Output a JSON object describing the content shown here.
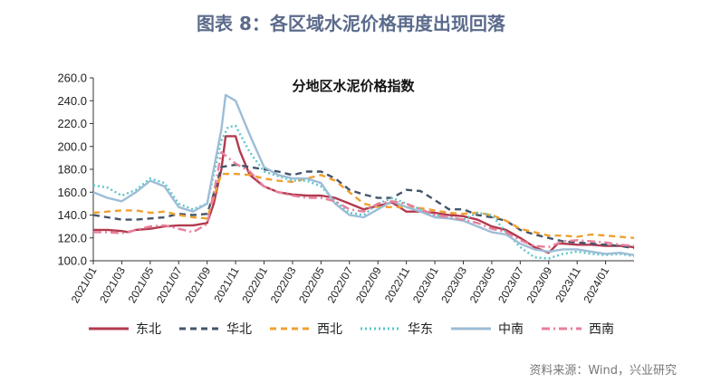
{
  "figure": {
    "title": "图表 8：各区域水泥价格再度出现回落",
    "source": "资料来源：Wind，兴业研究"
  },
  "chart_data": {
    "type": "line",
    "title": "分地区水泥价格指数",
    "xlabel": "",
    "ylabel": "",
    "ylim": [
      100,
      260
    ],
    "xlim": [
      "2021-01",
      "2024-03"
    ],
    "yticks": [
      "100.0",
      "120.0",
      "140.0",
      "160.0",
      "180.0",
      "200.0",
      "220.0",
      "240.0",
      "260.0"
    ],
    "xticks": [
      "2021/01",
      "2021/03",
      "2021/05",
      "2021/07",
      "2021/09",
      "2021/11",
      "2022/01",
      "2022/03",
      "2022/05",
      "2022/07",
      "2022/09",
      "2022/11",
      "2023/01",
      "2023/03",
      "2023/05",
      "2023/07",
      "2023/09",
      "2023/11",
      "2024/01"
    ],
    "grid": false,
    "legend_position": "bottom",
    "series": [
      {
        "name": "东北",
        "color": "#b33a4e",
        "dash": "solid",
        "points": [
          [
            "2021-01",
            127
          ],
          [
            "2021-02",
            127
          ],
          [
            "2021-03",
            126
          ],
          [
            "2021-03-15",
            125
          ],
          [
            "2021-04",
            127
          ],
          [
            "2021-05",
            128
          ],
          [
            "2021-06",
            130
          ],
          [
            "2021-07",
            131
          ],
          [
            "2021-08",
            131
          ],
          [
            "2021-09",
            133
          ],
          [
            "2021-09-15",
            150
          ],
          [
            "2021-10",
            180
          ],
          [
            "2021-10-10",
            209
          ],
          [
            "2021-11",
            209
          ],
          [
            "2021-11-10",
            196
          ],
          [
            "2021-12",
            175
          ],
          [
            "2022-01",
            165
          ],
          [
            "2022-02",
            160
          ],
          [
            "2022-03",
            158
          ],
          [
            "2022-04",
            157
          ],
          [
            "2022-05",
            157
          ],
          [
            "2022-06",
            155
          ],
          [
            "2022-07",
            150
          ],
          [
            "2022-08",
            145
          ],
          [
            "2022-09",
            148
          ],
          [
            "2022-10",
            151
          ],
          [
            "2022-11",
            143
          ],
          [
            "2022-12",
            143
          ],
          [
            "2023-01",
            142
          ],
          [
            "2023-02",
            140
          ],
          [
            "2023-03",
            139
          ],
          [
            "2023-04",
            136
          ],
          [
            "2023-05",
            130
          ],
          [
            "2023-06",
            127
          ],
          [
            "2023-07",
            120
          ],
          [
            "2023-08",
            112
          ],
          [
            "2023-09",
            107
          ],
          [
            "2023-09-20",
            115
          ],
          [
            "2023-10",
            115
          ],
          [
            "2023-11",
            114
          ],
          [
            "2023-12",
            114
          ],
          [
            "2024-01",
            113
          ],
          [
            "2024-02",
            113
          ],
          [
            "2024-03",
            112
          ]
        ]
      },
      {
        "name": "华北",
        "color": "#44546a",
        "dash": "dash",
        "points": [
          [
            "2021-01",
            140
          ],
          [
            "2021-02",
            138
          ],
          [
            "2021-03",
            136
          ],
          [
            "2021-04",
            136
          ],
          [
            "2021-05",
            137
          ],
          [
            "2021-06",
            138
          ],
          [
            "2021-07",
            141
          ],
          [
            "2021-08",
            140
          ],
          [
            "2021-09",
            141
          ],
          [
            "2021-09-20",
            165
          ],
          [
            "2021-10",
            182
          ],
          [
            "2021-11",
            184
          ],
          [
            "2021-12",
            182
          ],
          [
            "2022-01",
            180
          ],
          [
            "2022-02",
            178
          ],
          [
            "2022-03",
            175
          ],
          [
            "2022-04",
            178
          ],
          [
            "2022-05",
            178
          ],
          [
            "2022-06",
            172
          ],
          [
            "2022-07",
            162
          ],
          [
            "2022-08",
            158
          ],
          [
            "2022-09",
            155
          ],
          [
            "2022-10",
            155
          ],
          [
            "2022-11",
            162
          ],
          [
            "2022-12",
            161
          ],
          [
            "2023-01",
            153
          ],
          [
            "2023-02",
            145
          ],
          [
            "2023-03",
            145
          ],
          [
            "2023-04",
            140
          ],
          [
            "2023-05",
            138
          ],
          [
            "2023-06",
            135
          ],
          [
            "2023-07",
            127
          ],
          [
            "2023-08",
            123
          ],
          [
            "2023-09",
            120
          ],
          [
            "2023-10",
            117
          ],
          [
            "2023-11",
            116
          ],
          [
            "2023-12",
            115
          ],
          [
            "2024-01",
            114
          ],
          [
            "2024-02",
            113
          ],
          [
            "2024-03",
            111
          ]
        ]
      },
      {
        "name": "西北",
        "color": "#f0a030",
        "dash": "dash",
        "points": [
          [
            "2021-01",
            142
          ],
          [
            "2021-02",
            143
          ],
          [
            "2021-03",
            144
          ],
          [
            "2021-04",
            144
          ],
          [
            "2021-05",
            142
          ],
          [
            "2021-06",
            143
          ],
          [
            "2021-07",
            140
          ],
          [
            "2021-08",
            138
          ],
          [
            "2021-09",
            137
          ],
          [
            "2021-09-20",
            162
          ],
          [
            "2021-10",
            176
          ],
          [
            "2021-11",
            176
          ],
          [
            "2021-12",
            175
          ],
          [
            "2022-01",
            172
          ],
          [
            "2022-02",
            170
          ],
          [
            "2022-03",
            169
          ],
          [
            "2022-04",
            172
          ],
          [
            "2022-05",
            175
          ],
          [
            "2022-06",
            170
          ],
          [
            "2022-07",
            160
          ],
          [
            "2022-08",
            150
          ],
          [
            "2022-09",
            147
          ],
          [
            "2022-10",
            147
          ],
          [
            "2022-11",
            147
          ],
          [
            "2022-12",
            146
          ],
          [
            "2023-01",
            144
          ],
          [
            "2023-02",
            142
          ],
          [
            "2023-03",
            141
          ],
          [
            "2023-04",
            142
          ],
          [
            "2023-05",
            140
          ],
          [
            "2023-06",
            135
          ],
          [
            "2023-07",
            128
          ],
          [
            "2023-08",
            125
          ],
          [
            "2023-09",
            122
          ],
          [
            "2023-10",
            122
          ],
          [
            "2023-11",
            121
          ],
          [
            "2023-12",
            123
          ],
          [
            "2024-01",
            122
          ],
          [
            "2024-02",
            121
          ],
          [
            "2024-03",
            120
          ]
        ]
      },
      {
        "name": "华东",
        "color": "#5bc6c9",
        "dash": "dot",
        "points": [
          [
            "2021-01",
            166
          ],
          [
            "2021-02",
            164
          ],
          [
            "2021-03",
            157
          ],
          [
            "2021-04",
            162
          ],
          [
            "2021-05",
            172
          ],
          [
            "2021-06",
            168
          ],
          [
            "2021-07",
            150
          ],
          [
            "2021-08",
            145
          ],
          [
            "2021-09",
            150
          ],
          [
            "2021-10",
            205
          ],
          [
            "2021-10-15",
            217
          ],
          [
            "2021-11",
            218
          ],
          [
            "2021-12",
            195
          ],
          [
            "2022-01",
            178
          ],
          [
            "2022-02",
            174
          ],
          [
            "2022-03",
            170
          ],
          [
            "2022-04",
            170
          ],
          [
            "2022-05",
            165
          ],
          [
            "2022-06",
            152
          ],
          [
            "2022-07",
            142
          ],
          [
            "2022-08",
            140
          ],
          [
            "2022-09",
            150
          ],
          [
            "2022-10",
            155
          ],
          [
            "2022-11",
            150
          ],
          [
            "2022-12",
            145
          ],
          [
            "2023-01",
            140
          ],
          [
            "2023-02",
            138
          ],
          [
            "2023-03",
            136
          ],
          [
            "2023-04",
            142
          ],
          [
            "2023-05",
            140
          ],
          [
            "2023-06",
            125
          ],
          [
            "2023-07",
            112
          ],
          [
            "2023-08",
            103
          ],
          [
            "2023-09",
            102
          ],
          [
            "2023-10",
            106
          ],
          [
            "2023-11",
            108
          ],
          [
            "2023-12",
            106
          ],
          [
            "2024-01",
            105
          ],
          [
            "2024-02",
            106
          ],
          [
            "2024-03",
            104
          ]
        ]
      },
      {
        "name": "中南",
        "color": "#9dbdd6",
        "dash": "solid",
        "points": [
          [
            "2021-01",
            160
          ],
          [
            "2021-02",
            155
          ],
          [
            "2021-03",
            152
          ],
          [
            "2021-04",
            160
          ],
          [
            "2021-05",
            170
          ],
          [
            "2021-06",
            165
          ],
          [
            "2021-07",
            147
          ],
          [
            "2021-08",
            143
          ],
          [
            "2021-09",
            150
          ],
          [
            "2021-10",
            215
          ],
          [
            "2021-10-10",
            245
          ],
          [
            "2021-11",
            240
          ],
          [
            "2021-12",
            210
          ],
          [
            "2022-01",
            182
          ],
          [
            "2022-02",
            175
          ],
          [
            "2022-03",
            172
          ],
          [
            "2022-04",
            172
          ],
          [
            "2022-05",
            168
          ],
          [
            "2022-06",
            150
          ],
          [
            "2022-07",
            140
          ],
          [
            "2022-08",
            138
          ],
          [
            "2022-09",
            145
          ],
          [
            "2022-10",
            152
          ],
          [
            "2022-11",
            147
          ],
          [
            "2022-12",
            143
          ],
          [
            "2023-01",
            138
          ],
          [
            "2023-02",
            137
          ],
          [
            "2023-03",
            135
          ],
          [
            "2023-04",
            130
          ],
          [
            "2023-05",
            125
          ],
          [
            "2023-06",
            123
          ],
          [
            "2023-07",
            115
          ],
          [
            "2023-08",
            110
          ],
          [
            "2023-09",
            108
          ],
          [
            "2023-10",
            110
          ],
          [
            "2023-11",
            110
          ],
          [
            "2023-12",
            108
          ],
          [
            "2024-01",
            106
          ],
          [
            "2024-02",
            107
          ],
          [
            "2024-03",
            105
          ]
        ]
      },
      {
        "name": "西南",
        "color": "#e77f9b",
        "dash": "dashdot",
        "points": [
          [
            "2021-01",
            125
          ],
          [
            "2021-02",
            125
          ],
          [
            "2021-03",
            124
          ],
          [
            "2021-04",
            127
          ],
          [
            "2021-05",
            130
          ],
          [
            "2021-06",
            131
          ],
          [
            "2021-07",
            128
          ],
          [
            "2021-08",
            125
          ],
          [
            "2021-09",
            132
          ],
          [
            "2021-09-20",
            170
          ],
          [
            "2021-10",
            195
          ],
          [
            "2021-11",
            185
          ],
          [
            "2021-12",
            178
          ],
          [
            "2022-01",
            165
          ],
          [
            "2022-02",
            160
          ],
          [
            "2022-03",
            157
          ],
          [
            "2022-04",
            155
          ],
          [
            "2022-05",
            155
          ],
          [
            "2022-06",
            152
          ],
          [
            "2022-07",
            145
          ],
          [
            "2022-08",
            143
          ],
          [
            "2022-09",
            150
          ],
          [
            "2022-10",
            152
          ],
          [
            "2022-11",
            150
          ],
          [
            "2022-12",
            145
          ],
          [
            "2023-01",
            140
          ],
          [
            "2023-02",
            138
          ],
          [
            "2023-03",
            136
          ],
          [
            "2023-04",
            133
          ],
          [
            "2023-05",
            128
          ],
          [
            "2023-06",
            125
          ],
          [
            "2023-07",
            118
          ],
          [
            "2023-08",
            113
          ],
          [
            "2023-09",
            112
          ],
          [
            "2023-10",
            117
          ],
          [
            "2023-11",
            118
          ],
          [
            "2023-12",
            117
          ],
          [
            "2024-01",
            116
          ],
          [
            "2024-02",
            114
          ],
          [
            "2024-03",
            113
          ]
        ]
      }
    ]
  }
}
